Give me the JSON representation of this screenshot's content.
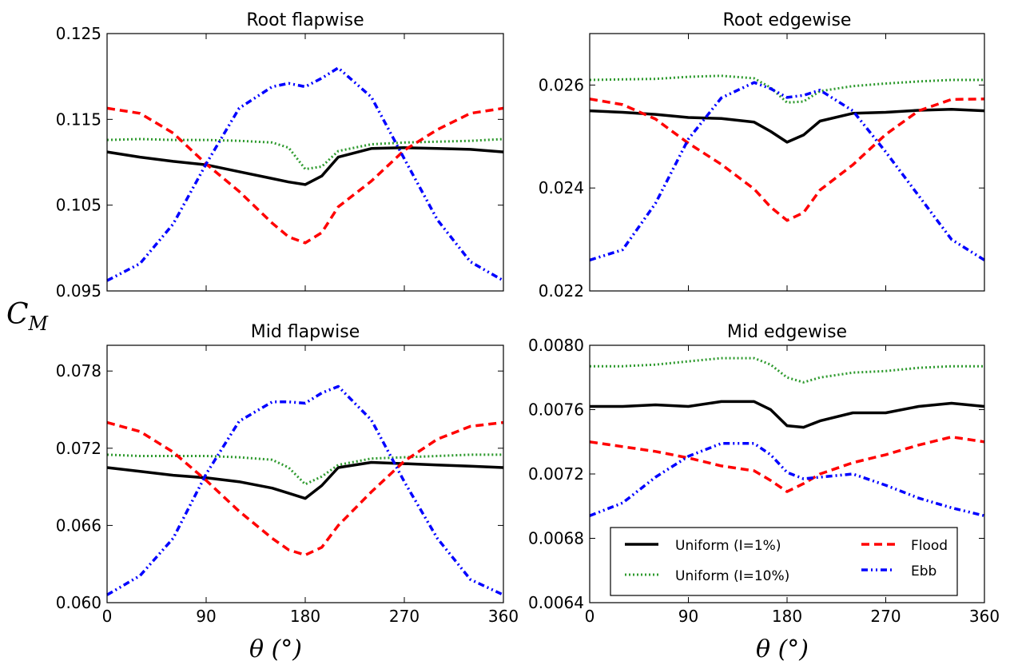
{
  "figure": {
    "ylabel": "C_M",
    "xlabel": "θ (°)"
  },
  "legend": {
    "entries": [
      {
        "label": "Uniform (I=1%)",
        "series": "uniform_1"
      },
      {
        "label": "Uniform (I=10%)",
        "series": "uniform_10"
      },
      {
        "label": "Flood",
        "series": "flood"
      },
      {
        "label": "Ebb",
        "series": "ebb"
      }
    ]
  },
  "styles": {
    "uniform_1": {
      "color": "#000000",
      "dash": "solid",
      "name": "Uniform (I=1%)"
    },
    "uniform_10": {
      "color": "#2e9a2e",
      "dash": "dotted",
      "name": "Uniform (I=10%)"
    },
    "flood": {
      "color": "#ff0000",
      "dash": "dashed",
      "name": "Flood"
    },
    "ebb": {
      "color": "#0000ff",
      "dash": "dashdot",
      "name": "Ebb"
    }
  },
  "chart_data": [
    {
      "type": "line",
      "title": "Root flapwise",
      "x": [
        0,
        30,
        60,
        90,
        120,
        150,
        165,
        180,
        195,
        210,
        240,
        270,
        300,
        330,
        360
      ],
      "xlim": [
        0,
        360
      ],
      "ylim": [
        0.095,
        0.125
      ],
      "xticks": [
        "0",
        "90",
        "180",
        "270",
        "360"
      ],
      "yticks": [
        "0.095",
        "0.105",
        "0.115",
        "0.125"
      ],
      "show_xtick_labels": false,
      "series": [
        {
          "name": "Uniform (I=1%)",
          "key": "uniform_1",
          "values": [
            0.1112,
            0.1106,
            0.1101,
            0.1097,
            0.1089,
            0.1081,
            0.1077,
            0.1074,
            0.1084,
            0.1106,
            0.1116,
            0.1117,
            0.1116,
            0.1115,
            0.1112
          ]
        },
        {
          "name": "Uniform (I=10%)",
          "key": "uniform_10",
          "values": [
            0.1126,
            0.1127,
            0.1126,
            0.1126,
            0.1125,
            0.1123,
            0.1117,
            0.1092,
            0.1095,
            0.1113,
            0.1121,
            0.1123,
            0.1124,
            0.1125,
            0.1127
          ]
        },
        {
          "name": "Flood",
          "key": "flood",
          "values": [
            0.1163,
            0.1157,
            0.1134,
            0.1098,
            0.1066,
            0.1029,
            0.1013,
            0.1006,
            0.1018,
            0.1048,
            0.1078,
            0.1114,
            0.1138,
            0.1157,
            0.1163
          ]
        },
        {
          "name": "Ebb",
          "key": "ebb",
          "values": [
            0.0962,
            0.0982,
            0.1028,
            0.1098,
            0.1163,
            0.1188,
            0.1192,
            0.1188,
            0.1198,
            0.121,
            0.1176,
            0.1104,
            0.1033,
            0.0984,
            0.0962
          ]
        }
      ]
    },
    {
      "type": "line",
      "title": "Root edgewise",
      "x": [
        0,
        30,
        60,
        90,
        120,
        150,
        165,
        180,
        195,
        210,
        240,
        270,
        300,
        330,
        360
      ],
      "xlim": [
        0,
        360
      ],
      "ylim": [
        0.022,
        0.027
      ],
      "xticks": [
        "0",
        "90",
        "180",
        "270",
        "360"
      ],
      "yticks": [
        "0.022",
        "0.024",
        "0.026"
      ],
      "show_xtick_labels": false,
      "series": [
        {
          "name": "Uniform (I=1%)",
          "key": "uniform_1",
          "values": [
            0.0255,
            0.02547,
            0.02543,
            0.02537,
            0.02535,
            0.02528,
            0.0251,
            0.02489,
            0.02503,
            0.0253,
            0.02545,
            0.02547,
            0.02551,
            0.02553,
            0.0255
          ]
        },
        {
          "name": "Uniform (I=10%)",
          "key": "uniform_10",
          "values": [
            0.0261,
            0.02611,
            0.02612,
            0.02616,
            0.02618,
            0.02613,
            0.02595,
            0.02566,
            0.02568,
            0.02588,
            0.02598,
            0.02603,
            0.02607,
            0.0261,
            0.0261
          ]
        },
        {
          "name": "Flood",
          "key": "flood",
          "values": [
            0.02573,
            0.02562,
            0.02534,
            0.02487,
            0.02446,
            0.02398,
            0.02363,
            0.02337,
            0.02352,
            0.02396,
            0.02445,
            0.02504,
            0.0255,
            0.02572,
            0.02573
          ]
        },
        {
          "name": "Ebb",
          "key": "ebb",
          "values": [
            0.0226,
            0.0228,
            0.0237,
            0.02495,
            0.02575,
            0.02605,
            0.02593,
            0.02576,
            0.0258,
            0.0259,
            0.0255,
            0.0247,
            0.02385,
            0.023,
            0.0226
          ]
        }
      ]
    },
    {
      "type": "line",
      "title": "Mid flapwise",
      "x": [
        0,
        30,
        60,
        90,
        120,
        150,
        165,
        180,
        195,
        210,
        240,
        270,
        300,
        330,
        360
      ],
      "xlim": [
        0,
        360
      ],
      "ylim": [
        0.06,
        0.08
      ],
      "xticks": [
        "0",
        "90",
        "180",
        "270",
        "360"
      ],
      "yticks": [
        "0.060",
        "0.066",
        "0.072",
        "0.078"
      ],
      "show_xtick_labels": true,
      "series": [
        {
          "name": "Uniform (I=1%)",
          "key": "uniform_1",
          "values": [
            0.0705,
            0.0702,
            0.0699,
            0.0697,
            0.0694,
            0.0689,
            0.0685,
            0.0681,
            0.0691,
            0.0705,
            0.0709,
            0.0708,
            0.0707,
            0.0706,
            0.0705
          ]
        },
        {
          "name": "Uniform (I=10%)",
          "key": "uniform_10",
          "values": [
            0.0715,
            0.0714,
            0.0714,
            0.0714,
            0.0713,
            0.0711,
            0.0705,
            0.0692,
            0.0698,
            0.0707,
            0.0712,
            0.0713,
            0.0714,
            0.0715,
            0.0715
          ]
        },
        {
          "name": "Flood",
          "key": "flood",
          "values": [
            0.074,
            0.0733,
            0.0717,
            0.0695,
            0.0671,
            0.065,
            0.0641,
            0.0637,
            0.0643,
            0.066,
            0.0686,
            0.071,
            0.0727,
            0.0737,
            0.074
          ]
        },
        {
          "name": "Ebb",
          "key": "ebb",
          "values": [
            0.0606,
            0.0621,
            0.065,
            0.07,
            0.0741,
            0.0756,
            0.0756,
            0.0755,
            0.0763,
            0.0768,
            0.0742,
            0.0694,
            0.065,
            0.0618,
            0.0606
          ]
        }
      ]
    },
    {
      "type": "line",
      "title": "Mid edgewise",
      "x": [
        0,
        30,
        60,
        90,
        120,
        150,
        165,
        180,
        195,
        210,
        240,
        270,
        300,
        330,
        360
      ],
      "xlim": [
        0,
        360
      ],
      "ylim": [
        0.0064,
        0.008
      ],
      "xticks": [
        "0",
        "90",
        "180",
        "270",
        "360"
      ],
      "yticks": [
        "0.0064",
        "0.0068",
        "0.0072",
        "0.0076",
        "0.0080"
      ],
      "show_xtick_labels": true,
      "series": [
        {
          "name": "Uniform (I=1%)",
          "key": "uniform_1",
          "values": [
            0.00762,
            0.00762,
            0.00763,
            0.00762,
            0.00765,
            0.00765,
            0.0076,
            0.0075,
            0.00749,
            0.00753,
            0.00758,
            0.00758,
            0.00762,
            0.00764,
            0.00762
          ]
        },
        {
          "name": "Uniform (I=10%)",
          "key": "uniform_10",
          "values": [
            0.00787,
            0.00787,
            0.00788,
            0.0079,
            0.00792,
            0.00792,
            0.00788,
            0.0078,
            0.00777,
            0.0078,
            0.00783,
            0.00784,
            0.00786,
            0.00787,
            0.00787
          ]
        },
        {
          "name": "Flood",
          "key": "flood",
          "values": [
            0.0074,
            0.00737,
            0.00734,
            0.0073,
            0.00725,
            0.00722,
            0.00716,
            0.00709,
            0.00714,
            0.0072,
            0.00727,
            0.00732,
            0.00738,
            0.00743,
            0.0074
          ]
        },
        {
          "name": "Ebb",
          "key": "ebb",
          "values": [
            0.00694,
            0.00702,
            0.00718,
            0.00731,
            0.00739,
            0.00739,
            0.00732,
            0.00721,
            0.00717,
            0.00718,
            0.0072,
            0.00713,
            0.00705,
            0.00699,
            0.00694
          ]
        }
      ]
    }
  ]
}
